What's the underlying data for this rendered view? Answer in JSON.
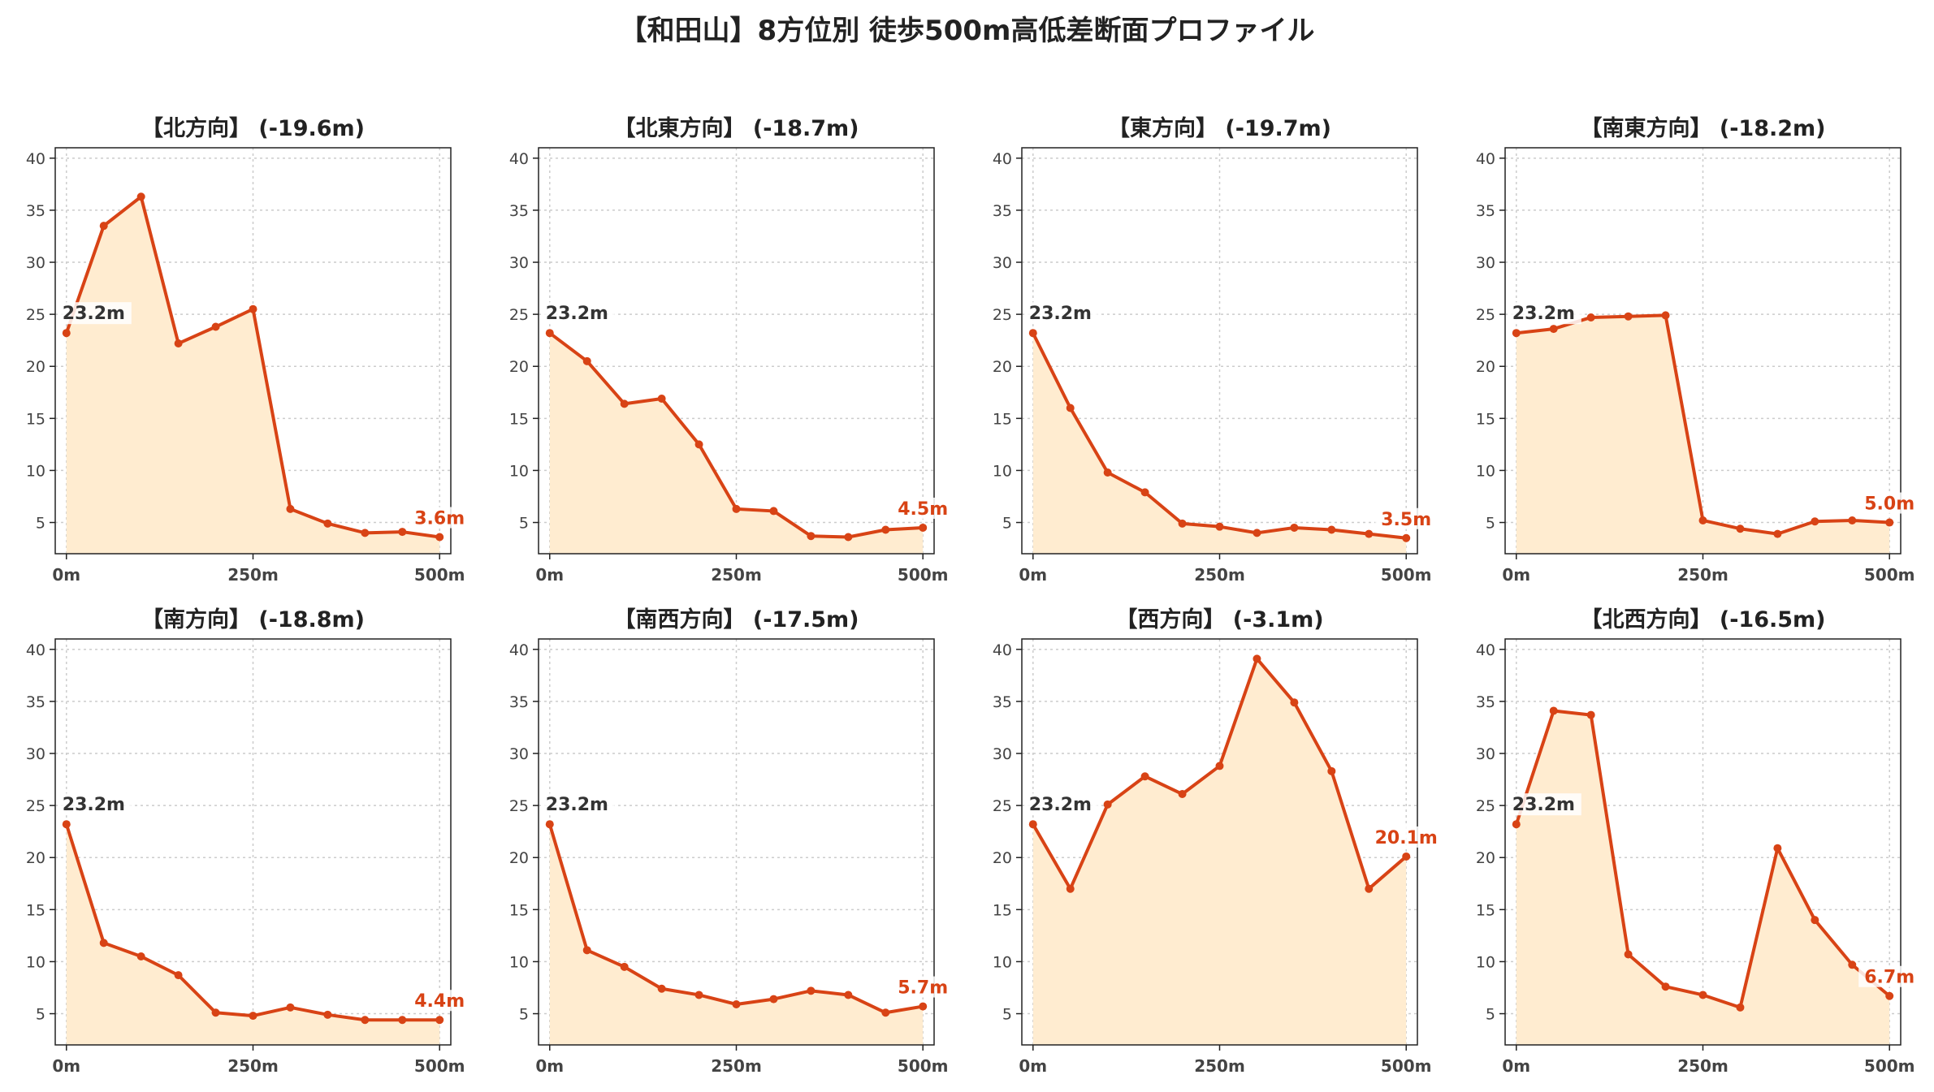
{
  "title": "【和田山】8方位別 徒歩500m高低差断面プロファイル",
  "colors": {
    "line": "#d84315",
    "fill": "#ffecd0",
    "grid": "#cccccc",
    "axis": "#222222",
    "start_label": "#333333",
    "end_label": "#d84315"
  },
  "chart_data": [
    {
      "type": "area",
      "title": "【北方向】 (-19.6m)",
      "x": [
        0,
        50,
        100,
        150,
        200,
        250,
        300,
        350,
        400,
        450,
        500
      ],
      "xticks": [
        0,
        250,
        500
      ],
      "xticklabels": [
        "0m",
        "250m",
        "500m"
      ],
      "yticks": [
        5,
        10,
        15,
        20,
        25,
        30,
        35,
        40
      ],
      "ylim": [
        2,
        41
      ],
      "grid": true,
      "series": [
        {
          "values": [
            23.2,
            33.5,
            36.3,
            22.2,
            23.8,
            25.5,
            6.3,
            4.9,
            4.0,
            4.1,
            3.6
          ]
        }
      ],
      "start_label": "23.2m",
      "end_label": "3.6m"
    },
    {
      "type": "area",
      "title": "【北東方向】 (-18.7m)",
      "x": [
        0,
        50,
        100,
        150,
        200,
        250,
        300,
        350,
        400,
        450,
        500
      ],
      "xticks": [
        0,
        250,
        500
      ],
      "xticklabels": [
        "0m",
        "250m",
        "500m"
      ],
      "yticks": [
        5,
        10,
        15,
        20,
        25,
        30,
        35,
        40
      ],
      "ylim": [
        2,
        41
      ],
      "grid": true,
      "series": [
        {
          "values": [
            23.2,
            20.5,
            16.4,
            16.9,
            12.5,
            6.3,
            6.1,
            3.7,
            3.6,
            4.3,
            4.5
          ]
        }
      ],
      "start_label": "23.2m",
      "end_label": "4.5m"
    },
    {
      "type": "area",
      "title": "【東方向】 (-19.7m)",
      "x": [
        0,
        50,
        100,
        150,
        200,
        250,
        300,
        350,
        400,
        450,
        500
      ],
      "xticks": [
        0,
        250,
        500
      ],
      "xticklabels": [
        "0m",
        "250m",
        "500m"
      ],
      "yticks": [
        5,
        10,
        15,
        20,
        25,
        30,
        35,
        40
      ],
      "ylim": [
        2,
        41
      ],
      "grid": true,
      "series": [
        {
          "values": [
            23.2,
            16.0,
            9.8,
            7.9,
            4.9,
            4.6,
            4.0,
            4.5,
            4.3,
            3.9,
            3.5
          ]
        }
      ],
      "start_label": "23.2m",
      "end_label": "3.5m"
    },
    {
      "type": "area",
      "title": "【南東方向】 (-18.2m)",
      "x": [
        0,
        50,
        100,
        150,
        200,
        250,
        300,
        350,
        400,
        450,
        500
      ],
      "xticks": [
        0,
        250,
        500
      ],
      "xticklabels": [
        "0m",
        "250m",
        "500m"
      ],
      "yticks": [
        5,
        10,
        15,
        20,
        25,
        30,
        35,
        40
      ],
      "ylim": [
        2,
        41
      ],
      "grid": true,
      "series": [
        {
          "values": [
            23.2,
            23.6,
            24.7,
            24.8,
            24.9,
            5.2,
            4.4,
            3.9,
            5.1,
            5.2,
            5.0
          ]
        }
      ],
      "start_label": "23.2m",
      "end_label": "5.0m"
    },
    {
      "type": "area",
      "title": "【南方向】 (-18.8m)",
      "x": [
        0,
        50,
        100,
        150,
        200,
        250,
        300,
        350,
        400,
        450,
        500
      ],
      "xticks": [
        0,
        250,
        500
      ],
      "xticklabels": [
        "0m",
        "250m",
        "500m"
      ],
      "yticks": [
        5,
        10,
        15,
        20,
        25,
        30,
        35,
        40
      ],
      "ylim": [
        2,
        41
      ],
      "grid": true,
      "series": [
        {
          "values": [
            23.2,
            11.8,
            10.5,
            8.7,
            5.1,
            4.8,
            5.6,
            4.9,
            4.4,
            4.4,
            4.4
          ]
        }
      ],
      "start_label": "23.2m",
      "end_label": "4.4m"
    },
    {
      "type": "area",
      "title": "【南西方向】 (-17.5m)",
      "x": [
        0,
        50,
        100,
        150,
        200,
        250,
        300,
        350,
        400,
        450,
        500
      ],
      "xticks": [
        0,
        250,
        500
      ],
      "xticklabels": [
        "0m",
        "250m",
        "500m"
      ],
      "yticks": [
        5,
        10,
        15,
        20,
        25,
        30,
        35,
        40
      ],
      "ylim": [
        2,
        41
      ],
      "grid": true,
      "series": [
        {
          "values": [
            23.2,
            11.1,
            9.5,
            7.4,
            6.8,
            5.9,
            6.4,
            7.2,
            6.8,
            5.1,
            5.7
          ]
        }
      ],
      "start_label": "23.2m",
      "end_label": "5.7m"
    },
    {
      "type": "area",
      "title": "【西方向】 (-3.1m)",
      "x": [
        0,
        50,
        100,
        150,
        200,
        250,
        300,
        350,
        400,
        450,
        500
      ],
      "xticks": [
        0,
        250,
        500
      ],
      "xticklabels": [
        "0m",
        "250m",
        "500m"
      ],
      "yticks": [
        5,
        10,
        15,
        20,
        25,
        30,
        35,
        40
      ],
      "ylim": [
        2,
        41
      ],
      "grid": true,
      "series": [
        {
          "values": [
            23.2,
            17.0,
            25.1,
            27.8,
            26.1,
            28.8,
            39.1,
            34.9,
            28.3,
            17.0,
            20.1
          ]
        }
      ],
      "start_label": "23.2m",
      "end_label": "20.1m"
    },
    {
      "type": "area",
      "title": "【北西方向】 (-16.5m)",
      "x": [
        0,
        50,
        100,
        150,
        200,
        250,
        300,
        350,
        400,
        450,
        500
      ],
      "xticks": [
        0,
        250,
        500
      ],
      "xticklabels": [
        "0m",
        "250m",
        "500m"
      ],
      "yticks": [
        5,
        10,
        15,
        20,
        25,
        30,
        35,
        40
      ],
      "ylim": [
        2,
        41
      ],
      "grid": true,
      "series": [
        {
          "values": [
            23.2,
            34.1,
            33.7,
            10.7,
            7.6,
            6.8,
            5.6,
            20.9,
            14.0,
            9.7,
            6.7
          ]
        }
      ],
      "start_label": "23.2m",
      "end_label": "6.7m"
    }
  ]
}
